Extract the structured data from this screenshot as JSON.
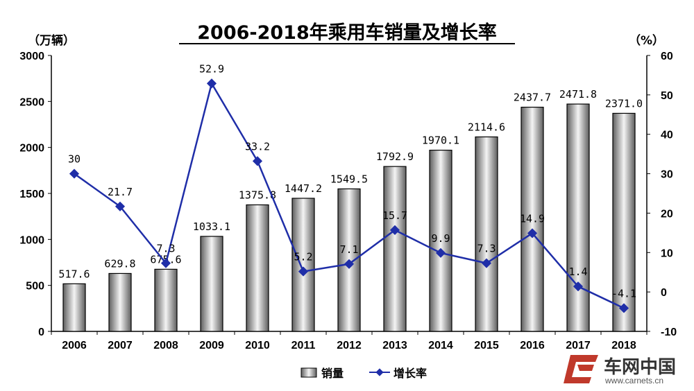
{
  "chart_data": {
    "type": "bar",
    "title": "2006-2018年乘用车销量及增长率",
    "y_left_unit": "（万辆）",
    "y_right_unit": "（%）",
    "categories": [
      "2006",
      "2007",
      "2008",
      "2009",
      "2010",
      "2011",
      "2012",
      "2013",
      "2014",
      "2015",
      "2016",
      "2017",
      "2018"
    ],
    "y_left_ticks": [
      0,
      500,
      1000,
      1500,
      2000,
      2500,
      3000
    ],
    "y_right_ticks": [
      -10,
      0,
      10,
      20,
      30,
      40,
      50,
      60
    ],
    "ylim_left": [
      0,
      3000
    ],
    "ylim_right": [
      -10,
      60
    ],
    "series": [
      {
        "name": "销量",
        "type": "bar",
        "axis": "left",
        "values": [
          517.6,
          629.8,
          675.6,
          1033.1,
          1375.8,
          1447.2,
          1549.5,
          1792.9,
          1970.1,
          2114.6,
          2437.7,
          2471.8,
          2371.0
        ],
        "labels": [
          "517.6",
          "629.8",
          "675.6",
          "1033.1",
          "1375.8",
          "1447.2",
          "1549.5",
          "1792.9",
          "1970.1",
          "2114.6",
          "2437.7",
          "2471.8",
          "2371.0"
        ]
      },
      {
        "name": "增长率",
        "type": "line",
        "axis": "right",
        "color": "#1f2ea8",
        "values": [
          30,
          21.7,
          7.3,
          52.9,
          33.2,
          5.2,
          7.1,
          15.7,
          9.9,
          7.3,
          14.9,
          1.4,
          -4.1
        ],
        "labels": [
          "30",
          "21.7",
          "7.3",
          "52.9",
          "33.2",
          "5.2",
          "7.1",
          "15.7",
          "9.9",
          "7.3",
          "14.9",
          "1.4",
          "-4.1"
        ]
      }
    ],
    "legend": {
      "position": "bottom-center",
      "items": [
        "销量",
        "增长率"
      ]
    },
    "grid": false
  },
  "watermark": {
    "text": "车网中国",
    "url": "www.carnets.cn"
  }
}
